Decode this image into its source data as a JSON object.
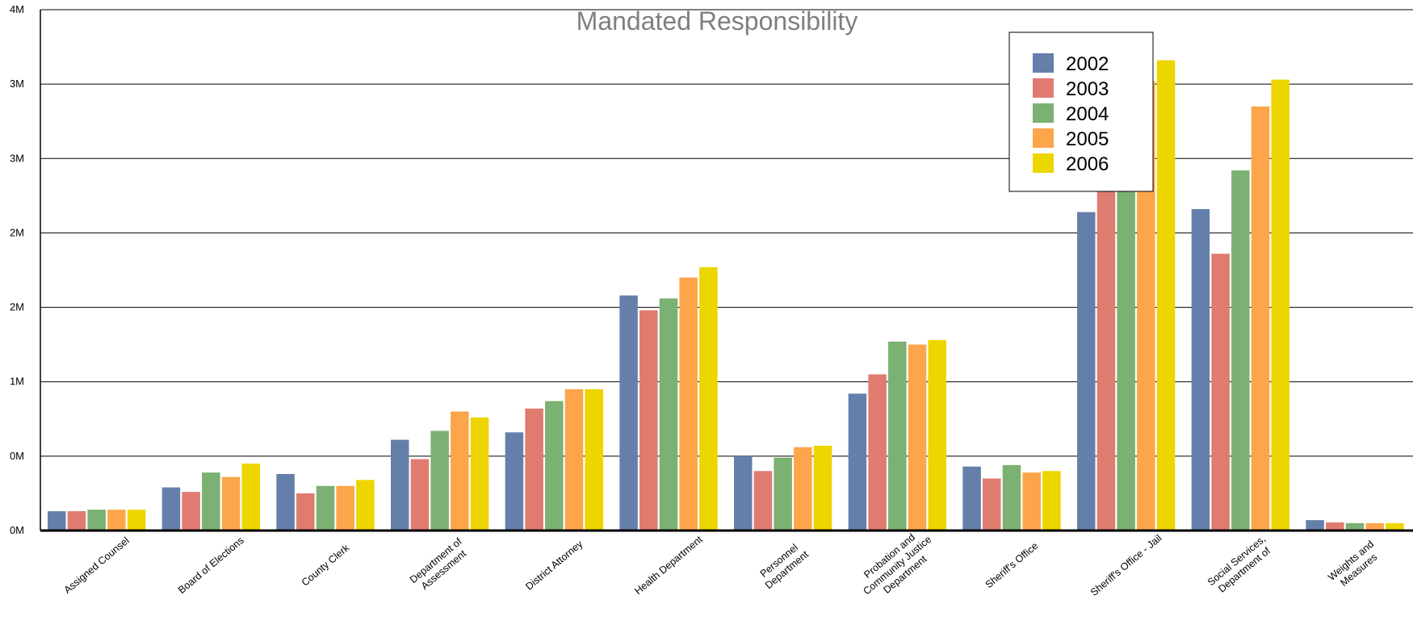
{
  "chart_data": {
    "type": "bar",
    "title": "Mandated Responsibility",
    "xlabel": "",
    "ylabel": "",
    "ylim": [
      0,
      3.5
    ],
    "y_ticks": [
      {
        "value": 0,
        "label": "0M"
      },
      {
        "value": 0.5,
        "label": "0M"
      },
      {
        "value": 1.0,
        "label": "1M"
      },
      {
        "value": 1.5,
        "label": "2M"
      },
      {
        "value": 2.0,
        "label": "2M"
      },
      {
        "value": 2.5,
        "label": "3M"
      },
      {
        "value": 3.0,
        "label": "3M"
      },
      {
        "value": 3.5,
        "label": "4M"
      }
    ],
    "grid": true,
    "legend_position": "top-right",
    "categories": [
      [
        "Assigned Counsel"
      ],
      [
        "Board of Elections"
      ],
      [
        "County Clerk"
      ],
      [
        "Department of",
        "Assessment"
      ],
      [
        "District Attorney"
      ],
      [
        "Health Department"
      ],
      [
        "Personnel",
        "Department"
      ],
      [
        "Probation and",
        "Community Justice",
        "Department"
      ],
      [
        "Sheriff's Office"
      ],
      [
        "Sheriff's Office - Jail"
      ],
      [
        "Social Services,",
        "Department of"
      ],
      [
        "Weights and",
        "Measures"
      ]
    ],
    "series": [
      {
        "name": "2002",
        "color": "#6480AA",
        "values": [
          0.13,
          0.29,
          0.38,
          0.61,
          0.66,
          1.58,
          0.5,
          0.92,
          0.43,
          2.14,
          2.16,
          0.07
        ]
      },
      {
        "name": "2003",
        "color": "#E07B70",
        "values": [
          0.13,
          0.26,
          0.25,
          0.48,
          0.82,
          1.48,
          0.4,
          1.05,
          0.35,
          2.37,
          1.86,
          0.055
        ]
      },
      {
        "name": "2004",
        "color": "#7BB172",
        "values": [
          0.14,
          0.39,
          0.3,
          0.67,
          0.87,
          1.56,
          0.49,
          1.27,
          0.44,
          2.46,
          2.42,
          0.05
        ]
      },
      {
        "name": "2005",
        "color": "#FCA54A",
        "values": [
          0.14,
          0.36,
          0.3,
          0.8,
          0.95,
          1.7,
          0.56,
          1.25,
          0.39,
          3.02,
          2.85,
          0.05
        ]
      },
      {
        "name": "2006",
        "color": "#EDD500",
        "values": [
          0.14,
          0.45,
          0.34,
          0.76,
          0.95,
          1.77,
          0.57,
          1.28,
          0.4,
          3.16,
          3.03,
          0.05
        ]
      }
    ]
  }
}
